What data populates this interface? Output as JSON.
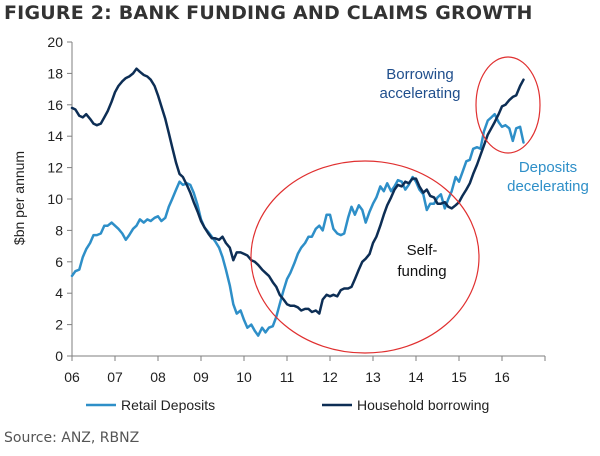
{
  "title": "FIGURE 2: BANK FUNDING AND CLAIMS GROWTH",
  "source": "Source: ANZ, RBNZ",
  "colors": {
    "retail": "#2E8FC8",
    "household": "#0D2E55",
    "highlight_circle": "#E03030",
    "annotation_blue": "#1F4E8C",
    "annotation_light": "#2E8FC8",
    "annotation_dark": "#111111",
    "axis": "#7F7F7F"
  },
  "annotations": {
    "borrowing_line1": "Borrowing",
    "borrowing_line2": "accelerating",
    "deposits_line1": "Deposits",
    "deposits_line2": "decelerating",
    "self_line1": "Self-",
    "self_line2": "funding"
  },
  "chart_data": {
    "type": "line",
    "ylabel": "$bn per annum",
    "xlabel": "",
    "ylim": [
      0,
      20
    ],
    "yticks": [
      0,
      2,
      4,
      6,
      8,
      10,
      12,
      14,
      16,
      18,
      20
    ],
    "xlim": [
      2006.0,
      2017.0
    ],
    "xtick_labels": [
      "06",
      "07",
      "08",
      "09",
      "10",
      "11",
      "12",
      "13",
      "14",
      "15",
      "16"
    ],
    "grid": false,
    "legend_position": "bottom",
    "series": [
      {
        "name": "Retail Deposits",
        "color": "#2E8FC8",
        "points": [
          [
            2006.0,
            5.1
          ],
          [
            2006.08,
            5.4
          ],
          [
            2006.17,
            5.5
          ],
          [
            2006.25,
            6.3
          ],
          [
            2006.33,
            6.8
          ],
          [
            2006.42,
            7.2
          ],
          [
            2006.5,
            7.7
          ],
          [
            2006.58,
            7.7
          ],
          [
            2006.67,
            7.8
          ],
          [
            2006.75,
            8.3
          ],
          [
            2006.83,
            8.3
          ],
          [
            2006.92,
            8.5
          ],
          [
            2007.0,
            8.3
          ],
          [
            2007.08,
            8.1
          ],
          [
            2007.17,
            7.8
          ],
          [
            2007.25,
            7.4
          ],
          [
            2007.33,
            7.7
          ],
          [
            2007.42,
            8.1
          ],
          [
            2007.5,
            8.3
          ],
          [
            2007.58,
            8.7
          ],
          [
            2007.67,
            8.5
          ],
          [
            2007.75,
            8.7
          ],
          [
            2007.83,
            8.6
          ],
          [
            2007.92,
            8.8
          ],
          [
            2008.0,
            8.9
          ],
          [
            2008.08,
            8.6
          ],
          [
            2008.17,
            8.8
          ],
          [
            2008.25,
            9.5
          ],
          [
            2008.33,
            10.0
          ],
          [
            2008.42,
            10.6
          ],
          [
            2008.5,
            11.1
          ],
          [
            2008.58,
            10.9
          ],
          [
            2008.67,
            11.0
          ],
          [
            2008.75,
            10.9
          ],
          [
            2008.83,
            10.4
          ],
          [
            2008.92,
            9.6
          ],
          [
            2009.0,
            8.7
          ],
          [
            2009.08,
            8.2
          ],
          [
            2009.17,
            7.9
          ],
          [
            2009.25,
            7.6
          ],
          [
            2009.33,
            7.3
          ],
          [
            2009.42,
            6.9
          ],
          [
            2009.5,
            6.3
          ],
          [
            2009.58,
            5.5
          ],
          [
            2009.67,
            4.5
          ],
          [
            2009.75,
            3.3
          ],
          [
            2009.83,
            2.7
          ],
          [
            2009.92,
            2.9
          ],
          [
            2010.0,
            2.3
          ],
          [
            2010.08,
            1.8
          ],
          [
            2010.17,
            2.0
          ],
          [
            2010.25,
            1.6
          ],
          [
            2010.33,
            1.3
          ],
          [
            2010.42,
            1.8
          ],
          [
            2010.5,
            1.5
          ],
          [
            2010.58,
            1.8
          ],
          [
            2010.67,
            1.9
          ],
          [
            2010.75,
            2.5
          ],
          [
            2010.83,
            3.3
          ],
          [
            2010.92,
            4.2
          ],
          [
            2011.0,
            4.9
          ],
          [
            2011.08,
            5.3
          ],
          [
            2011.17,
            5.9
          ],
          [
            2011.25,
            6.5
          ],
          [
            2011.33,
            6.9
          ],
          [
            2011.42,
            7.2
          ],
          [
            2011.5,
            7.6
          ],
          [
            2011.58,
            7.6
          ],
          [
            2011.67,
            8.1
          ],
          [
            2011.75,
            8.3
          ],
          [
            2011.83,
            8.0
          ],
          [
            2011.92,
            9.0
          ],
          [
            2012.0,
            9.0
          ],
          [
            2012.08,
            8.1
          ],
          [
            2012.17,
            7.8
          ],
          [
            2012.25,
            7.7
          ],
          [
            2012.33,
            7.8
          ],
          [
            2012.42,
            8.8
          ],
          [
            2012.5,
            9.5
          ],
          [
            2012.58,
            9.0
          ],
          [
            2012.67,
            9.6
          ],
          [
            2012.75,
            9.3
          ],
          [
            2012.83,
            8.5
          ],
          [
            2012.92,
            9.2
          ],
          [
            2013.0,
            9.7
          ],
          [
            2013.08,
            10.1
          ],
          [
            2013.17,
            10.8
          ],
          [
            2013.25,
            10.5
          ],
          [
            2013.33,
            11.0
          ],
          [
            2013.42,
            10.5
          ],
          [
            2013.5,
            10.8
          ],
          [
            2013.58,
            11.2
          ],
          [
            2013.67,
            11.1
          ],
          [
            2013.75,
            10.6
          ],
          [
            2013.83,
            10.9
          ],
          [
            2013.92,
            11.4
          ],
          [
            2014.0,
            11.1
          ],
          [
            2014.08,
            10.6
          ],
          [
            2014.17,
            10.3
          ],
          [
            2014.25,
            9.3
          ],
          [
            2014.33,
            9.7
          ],
          [
            2014.42,
            9.7
          ],
          [
            2014.5,
            10.1
          ],
          [
            2014.58,
            10.3
          ],
          [
            2014.67,
            9.4
          ],
          [
            2014.75,
            10.0
          ],
          [
            2014.83,
            10.5
          ],
          [
            2014.92,
            11.4
          ],
          [
            2015.0,
            11.1
          ],
          [
            2015.08,
            11.7
          ],
          [
            2015.17,
            12.4
          ],
          [
            2015.25,
            12.5
          ],
          [
            2015.33,
            13.2
          ],
          [
            2015.42,
            13.3
          ],
          [
            2015.5,
            13.2
          ],
          [
            2015.58,
            14.3
          ],
          [
            2015.67,
            15.0
          ],
          [
            2015.75,
            15.2
          ],
          [
            2015.83,
            15.4
          ],
          [
            2015.92,
            14.9
          ],
          [
            2016.0,
            14.6
          ],
          [
            2016.08,
            14.7
          ],
          [
            2016.17,
            14.5
          ],
          [
            2016.25,
            13.7
          ],
          [
            2016.33,
            14.5
          ],
          [
            2016.42,
            14.6
          ],
          [
            2016.5,
            13.6
          ]
        ]
      },
      {
        "name": "Household borrowing",
        "color": "#0D2E55",
        "points": [
          [
            2006.0,
            15.8
          ],
          [
            2006.08,
            15.7
          ],
          [
            2006.17,
            15.3
          ],
          [
            2006.25,
            15.2
          ],
          [
            2006.33,
            15.4
          ],
          [
            2006.42,
            15.1
          ],
          [
            2006.5,
            14.8
          ],
          [
            2006.58,
            14.7
          ],
          [
            2006.67,
            14.8
          ],
          [
            2006.75,
            15.2
          ],
          [
            2006.83,
            15.6
          ],
          [
            2006.92,
            16.2
          ],
          [
            2007.0,
            16.8
          ],
          [
            2007.08,
            17.2
          ],
          [
            2007.17,
            17.5
          ],
          [
            2007.25,
            17.7
          ],
          [
            2007.33,
            17.8
          ],
          [
            2007.42,
            18.0
          ],
          [
            2007.5,
            18.3
          ],
          [
            2007.58,
            18.1
          ],
          [
            2007.67,
            17.9
          ],
          [
            2007.75,
            17.8
          ],
          [
            2007.83,
            17.6
          ],
          [
            2007.92,
            17.2
          ],
          [
            2008.0,
            16.6
          ],
          [
            2008.08,
            15.9
          ],
          [
            2008.17,
            15.1
          ],
          [
            2008.25,
            14.2
          ],
          [
            2008.33,
            13.3
          ],
          [
            2008.42,
            12.3
          ],
          [
            2008.5,
            11.6
          ],
          [
            2008.58,
            11.4
          ],
          [
            2008.67,
            10.9
          ],
          [
            2008.75,
            10.4
          ],
          [
            2008.83,
            9.8
          ],
          [
            2008.92,
            9.2
          ],
          [
            2009.0,
            8.6
          ],
          [
            2009.08,
            8.2
          ],
          [
            2009.17,
            7.8
          ],
          [
            2009.25,
            7.5
          ],
          [
            2009.33,
            7.5
          ],
          [
            2009.42,
            7.4
          ],
          [
            2009.5,
            7.6
          ],
          [
            2009.58,
            7.2
          ],
          [
            2009.67,
            6.9
          ],
          [
            2009.75,
            6.1
          ],
          [
            2009.83,
            6.6
          ],
          [
            2009.92,
            6.6
          ],
          [
            2010.0,
            6.5
          ],
          [
            2010.08,
            6.4
          ],
          [
            2010.17,
            6.1
          ],
          [
            2010.25,
            6.0
          ],
          [
            2010.33,
            5.8
          ],
          [
            2010.42,
            5.5
          ],
          [
            2010.5,
            5.3
          ],
          [
            2010.58,
            5.1
          ],
          [
            2010.67,
            4.7
          ],
          [
            2010.75,
            4.4
          ],
          [
            2010.83,
            3.9
          ],
          [
            2010.92,
            3.6
          ],
          [
            2011.0,
            3.3
          ],
          [
            2011.08,
            3.2
          ],
          [
            2011.17,
            3.2
          ],
          [
            2011.25,
            3.1
          ],
          [
            2011.33,
            2.9
          ],
          [
            2011.42,
            3.0
          ],
          [
            2011.5,
            3.0
          ],
          [
            2011.58,
            2.8
          ],
          [
            2011.67,
            2.9
          ],
          [
            2011.75,
            2.7
          ],
          [
            2011.83,
            3.6
          ],
          [
            2011.92,
            3.9
          ],
          [
            2012.0,
            3.8
          ],
          [
            2012.08,
            3.9
          ],
          [
            2012.17,
            3.8
          ],
          [
            2012.25,
            4.2
          ],
          [
            2012.33,
            4.3
          ],
          [
            2012.42,
            4.3
          ],
          [
            2012.5,
            4.4
          ],
          [
            2012.58,
            4.9
          ],
          [
            2012.67,
            5.5
          ],
          [
            2012.75,
            6.0
          ],
          [
            2012.83,
            6.2
          ],
          [
            2012.92,
            6.5
          ],
          [
            2013.0,
            7.2
          ],
          [
            2013.08,
            7.6
          ],
          [
            2013.17,
            8.3
          ],
          [
            2013.25,
            9.0
          ],
          [
            2013.33,
            9.6
          ],
          [
            2013.42,
            10.1
          ],
          [
            2013.5,
            10.6
          ],
          [
            2013.58,
            10.9
          ],
          [
            2013.67,
            10.8
          ],
          [
            2013.75,
            11.1
          ],
          [
            2013.83,
            11.0
          ],
          [
            2013.92,
            11.3
          ],
          [
            2014.0,
            11.3
          ],
          [
            2014.08,
            10.8
          ],
          [
            2014.17,
            10.4
          ],
          [
            2014.25,
            10.6
          ],
          [
            2014.33,
            10.2
          ],
          [
            2014.42,
            10.1
          ],
          [
            2014.5,
            9.7
          ],
          [
            2014.58,
            9.7
          ],
          [
            2014.67,
            9.8
          ],
          [
            2014.75,
            9.5
          ],
          [
            2014.83,
            9.4
          ],
          [
            2014.92,
            9.6
          ],
          [
            2015.0,
            9.8
          ],
          [
            2015.08,
            10.2
          ],
          [
            2015.17,
            10.6
          ],
          [
            2015.25,
            11.0
          ],
          [
            2015.33,
            11.6
          ],
          [
            2015.42,
            12.2
          ],
          [
            2015.5,
            12.8
          ],
          [
            2015.58,
            13.4
          ],
          [
            2015.67,
            14.1
          ],
          [
            2015.75,
            14.5
          ],
          [
            2015.83,
            14.9
          ],
          [
            2015.92,
            15.4
          ],
          [
            2016.0,
            15.9
          ],
          [
            2016.08,
            16.0
          ],
          [
            2016.17,
            16.3
          ],
          [
            2016.25,
            16.5
          ],
          [
            2016.33,
            16.6
          ],
          [
            2016.42,
            17.2
          ],
          [
            2016.5,
            17.6
          ]
        ]
      }
    ]
  }
}
